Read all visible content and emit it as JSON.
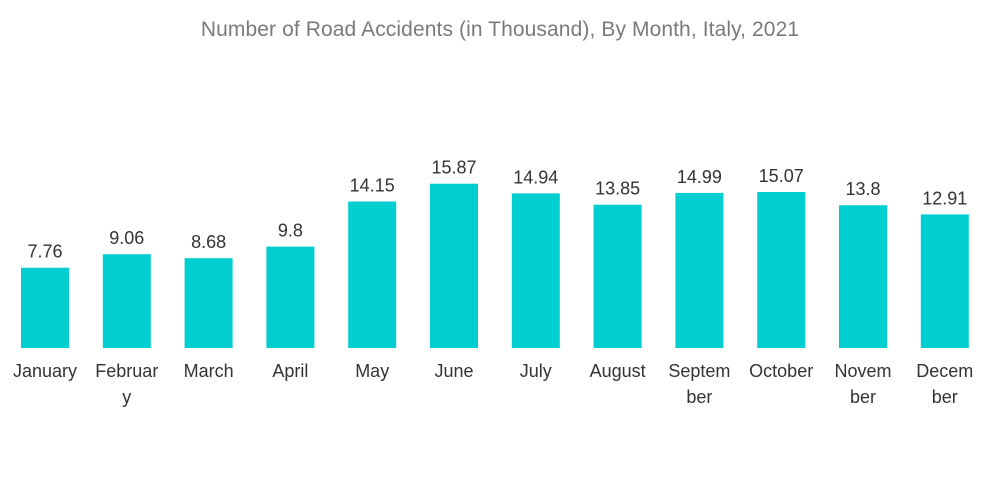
{
  "chart_data": {
    "type": "bar",
    "title": "Number of Road Accidents (in Thousand), By Month, Italy, 2021",
    "categories": [
      "January",
      "February",
      "March",
      "April",
      "May",
      "June",
      "July",
      "August",
      "September",
      "October",
      "November",
      "December"
    ],
    "category_label_lines": [
      [
        "January"
      ],
      [
        "Februar",
        "y"
      ],
      [
        "March"
      ],
      [
        "April"
      ],
      [
        "May"
      ],
      [
        "June"
      ],
      [
        "July"
      ],
      [
        "August"
      ],
      [
        "Septem",
        "ber"
      ],
      [
        "October"
      ],
      [
        "Novem",
        "ber"
      ],
      [
        "Decem",
        "ber"
      ]
    ],
    "values": [
      7.76,
      9.06,
      8.68,
      9.8,
      14.15,
      15.87,
      14.94,
      13.85,
      14.99,
      15.07,
      13.8,
      12.91
    ],
    "value_labels": [
      "7.76",
      "9.06",
      "8.68",
      "9.8",
      "14.15",
      "15.87",
      "14.94",
      "13.85",
      "14.99",
      "15.07",
      "13.8",
      "12.91"
    ],
    "xlabel": "",
    "ylabel": "",
    "ylim": [
      0,
      17
    ],
    "grid": false,
    "bar_color": "#00ced1"
  }
}
